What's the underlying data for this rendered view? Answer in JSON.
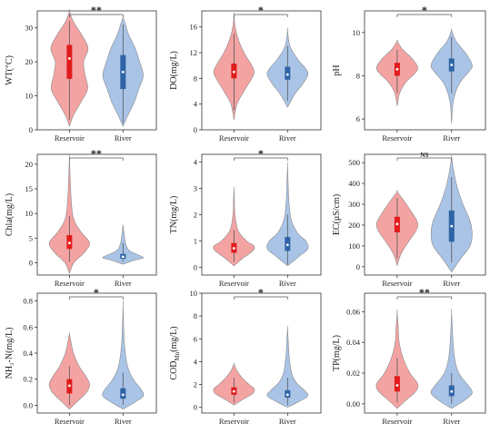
{
  "chart_data": [
    {
      "type": "violin",
      "ylabel": "WT(°C)",
      "categories": [
        "Reservoir",
        "River"
      ],
      "ylim": [
        0,
        35
      ],
      "yticks": [
        0,
        10,
        20,
        30
      ],
      "significance": "**",
      "series": [
        {
          "name": "Reservoir",
          "color": "#f4a3a3",
          "box_color": "#e21b1b",
          "min": 3,
          "q1": 15,
          "median": 21,
          "q3": 25,
          "max": 32,
          "profile_y": [
            1,
            4,
            8,
            12,
            16,
            20,
            24,
            28,
            32,
            35
          ],
          "profile_w": [
            0,
            0.18,
            0.55,
            0.9,
            0.78,
            0.7,
            0.92,
            0.6,
            0.18,
            0
          ]
        },
        {
          "name": "River",
          "color": "#a9c4e6",
          "box_color": "#2e63a6",
          "min": 2,
          "q1": 12,
          "median": 17,
          "q3": 22,
          "max": 31,
          "profile_y": [
            1,
            4,
            8,
            12,
            16,
            20,
            24,
            28,
            31,
            33
          ],
          "profile_w": [
            0,
            0.22,
            0.55,
            0.78,
            1.0,
            0.82,
            0.6,
            0.28,
            0.12,
            0
          ]
        }
      ]
    },
    {
      "type": "violin",
      "ylabel": "DO(mg/L)",
      "categories": [
        "Reservoir",
        "River"
      ],
      "ylim": [
        0,
        18.5
      ],
      "yticks": [
        0,
        4,
        8,
        12,
        16
      ],
      "significance": "*",
      "series": [
        {
          "name": "Reservoir",
          "color": "#f4a3a3",
          "box_color": "#e21b1b",
          "min": 3,
          "q1": 8,
          "median": 9,
          "q3": 10.3,
          "max": 15,
          "profile_y": [
            1.5,
            4,
            6,
            8,
            9,
            10,
            12,
            14,
            16,
            18
          ],
          "profile_w": [
            0,
            0.15,
            0.5,
            0.88,
            1.0,
            0.88,
            0.5,
            0.22,
            0.06,
            0
          ]
        },
        {
          "name": "River",
          "color": "#a9c4e6",
          "box_color": "#2e63a6",
          "min": 4.5,
          "q1": 7.8,
          "median": 8.6,
          "q3": 9.8,
          "max": 13,
          "profile_y": [
            3.5,
            5.5,
            7,
            8.5,
            9.5,
            11,
            13,
            15.5
          ],
          "profile_w": [
            0,
            0.35,
            0.72,
            1.0,
            0.9,
            0.5,
            0.12,
            0
          ]
        }
      ]
    },
    {
      "type": "violin",
      "ylabel": "pH",
      "categories": [
        "Reservoir",
        "River"
      ],
      "ylim": [
        5.5,
        11
      ],
      "yticks": [
        6,
        8,
        10
      ],
      "significance": "*",
      "series": [
        {
          "name": "Reservoir",
          "color": "#f4a3a3",
          "box_color": "#e21b1b",
          "min": 7.2,
          "q1": 8.0,
          "median": 8.3,
          "q3": 8.6,
          "max": 9.2,
          "profile_y": [
            6.6,
            7.2,
            7.7,
            8.1,
            8.4,
            8.8,
            9.2,
            9.6
          ],
          "profile_w": [
            0,
            0.12,
            0.42,
            0.85,
            1.0,
            0.72,
            0.28,
            0
          ]
        },
        {
          "name": "River",
          "color": "#a9c4e6",
          "box_color": "#2e63a6",
          "min": 7.2,
          "q1": 8.2,
          "median": 8.5,
          "q3": 8.8,
          "max": 9.8,
          "profile_y": [
            5.8,
            6.8,
            7.6,
            8.2,
            8.5,
            9.0,
            9.6,
            10.1
          ],
          "profile_w": [
            0,
            0.08,
            0.35,
            0.85,
            1.0,
            0.72,
            0.22,
            0
          ]
        }
      ]
    },
    {
      "type": "violin",
      "ylabel": "Chla(mg/L)",
      "categories": [
        "Reservoir",
        "River"
      ],
      "ylim": [
        -2.5,
        22
      ],
      "yticks": [
        0,
        5,
        10,
        15,
        20
      ],
      "significance": "**",
      "series": [
        {
          "name": "Reservoir",
          "color": "#f4a3a3",
          "box_color": "#e21b1b",
          "min": 0.2,
          "q1": 2.8,
          "median": 4.0,
          "q3": 5.6,
          "max": 9.5,
          "profile_y": [
            -2.2,
            0,
            2,
            4,
            6,
            8,
            10,
            14,
            18,
            21.5
          ],
          "profile_w": [
            0,
            0.22,
            0.72,
            1.0,
            0.62,
            0.3,
            0.15,
            0.07,
            0.03,
            0
          ]
        },
        {
          "name": "River",
          "color": "#a9c4e6",
          "box_color": "#2e63a6",
          "min": 0.3,
          "q1": 0.8,
          "median": 1.2,
          "q3": 1.8,
          "max": 4.0,
          "profile_y": [
            -0.3,
            0.5,
            1.0,
            1.5,
            2.5,
            4,
            6,
            7.5
          ],
          "profile_w": [
            0,
            0.55,
            1.0,
            0.8,
            0.3,
            0.12,
            0.05,
            0
          ]
        }
      ]
    },
    {
      "type": "violin",
      "ylabel": "TN(mg/L)",
      "categories": [
        "Reservoir",
        "River"
      ],
      "ylim": [
        -0.3,
        4.3
      ],
      "yticks": [
        0,
        1,
        2,
        3,
        4
      ],
      "significance": "*",
      "series": [
        {
          "name": "Reservoir",
          "color": "#f4a3a3",
          "box_color": "#e21b1b",
          "min": 0.2,
          "q1": 0.55,
          "median": 0.72,
          "q3": 0.92,
          "max": 1.4,
          "profile_y": [
            0.05,
            0.35,
            0.6,
            0.8,
            1.0,
            1.4,
            2.0,
            2.6,
            3.0
          ],
          "profile_w": [
            0,
            0.45,
            0.9,
            1.0,
            0.62,
            0.2,
            0.05,
            0.02,
            0
          ]
        },
        {
          "name": "River",
          "color": "#a9c4e6",
          "box_color": "#2e63a6",
          "min": 0.1,
          "q1": 0.62,
          "median": 0.85,
          "q3": 1.15,
          "max": 2.0,
          "profile_y": [
            0.05,
            0.4,
            0.7,
            1.0,
            1.3,
            1.8,
            2.5,
            3.2,
            3.9
          ],
          "profile_w": [
            0,
            0.55,
            1.0,
            0.9,
            0.5,
            0.18,
            0.07,
            0.03,
            0
          ]
        }
      ]
    },
    {
      "type": "violin",
      "ylabel": "EC(μS/cm)",
      "categories": [
        "Reservoir",
        "River"
      ],
      "ylim": [
        -40,
        540
      ],
      "yticks": [
        0,
        100,
        200,
        300,
        400,
        500
      ],
      "significance": "NS",
      "series": [
        {
          "name": "Reservoir",
          "color": "#f4a3a3",
          "box_color": "#e21b1b",
          "min": 40,
          "q1": 165,
          "median": 205,
          "q3": 240,
          "max": 330,
          "profile_y": [
            5,
            60,
            120,
            170,
            210,
            260,
            310,
            360
          ],
          "profile_w": [
            0,
            0.18,
            0.55,
            0.9,
            1.0,
            0.72,
            0.38,
            0
          ]
        },
        {
          "name": "River",
          "color": "#a9c4e6",
          "box_color": "#2e63a6",
          "min": 20,
          "q1": 120,
          "median": 195,
          "q3": 270,
          "max": 430,
          "profile_y": [
            -25,
            40,
            100,
            160,
            220,
            300,
            380,
            450,
            525
          ],
          "profile_w": [
            0,
            0.45,
            0.9,
            1.0,
            0.9,
            0.55,
            0.28,
            0.12,
            0
          ]
        }
      ]
    },
    {
      "type": "violin",
      "ylabel": "NH₃-N(mg/L)",
      "categories": [
        "Reservoir",
        "River"
      ],
      "ylim": [
        -0.06,
        0.86
      ],
      "yticks": [
        0.0,
        0.2,
        0.4,
        0.6,
        0.8
      ],
      "significance": "*",
      "series": [
        {
          "name": "Reservoir",
          "color": "#f4a3a3",
          "box_color": "#e21b1b",
          "min": 0.0,
          "q1": 0.09,
          "median": 0.15,
          "q3": 0.2,
          "max": 0.3,
          "profile_y": [
            -0.03,
            0.03,
            0.1,
            0.16,
            0.22,
            0.3,
            0.4,
            0.5,
            0.55
          ],
          "profile_w": [
            0,
            0.4,
            0.85,
            1.0,
            0.82,
            0.48,
            0.2,
            0.06,
            0
          ]
        },
        {
          "name": "River",
          "color": "#a9c4e6",
          "box_color": "#2e63a6",
          "min": 0.0,
          "q1": 0.05,
          "median": 0.08,
          "q3": 0.13,
          "max": 0.25,
          "profile_y": [
            -0.03,
            0.02,
            0.07,
            0.12,
            0.2,
            0.3,
            0.45,
            0.6,
            0.78
          ],
          "profile_w": [
            0,
            0.55,
            1.0,
            0.9,
            0.5,
            0.22,
            0.08,
            0.03,
            0
          ]
        }
      ]
    },
    {
      "type": "violin",
      "ylabel": "COD_Mn(mg/L)",
      "categories": [
        "Reservoir",
        "River"
      ],
      "ylim": [
        -0.5,
        10
      ],
      "yticks": [
        0,
        2,
        4,
        6,
        8,
        10
      ],
      "significance": "*",
      "series": [
        {
          "name": "Reservoir",
          "color": "#f4a3a3",
          "box_color": "#e21b1b",
          "min": 0.4,
          "q1": 1.1,
          "median": 1.4,
          "q3": 1.75,
          "max": 2.6,
          "profile_y": [
            0.2,
            0.7,
            1.2,
            1.6,
            2.0,
            2.6,
            3.2,
            3.8
          ],
          "profile_w": [
            0,
            0.45,
            0.92,
            1.0,
            0.75,
            0.4,
            0.15,
            0
          ]
        },
        {
          "name": "River",
          "color": "#a9c4e6",
          "box_color": "#2e63a6",
          "min": 0.2,
          "q1": 0.85,
          "median": 1.1,
          "q3": 1.5,
          "max": 2.6,
          "profile_y": [
            0.0,
            0.5,
            1.0,
            1.5,
            2.2,
            3.0,
            4.5,
            6.0,
            7.0
          ],
          "profile_w": [
            0,
            0.55,
            1.0,
            0.82,
            0.42,
            0.2,
            0.08,
            0.03,
            0
          ]
        }
      ]
    },
    {
      "type": "violin",
      "ylabel": "TP(mg/L)",
      "categories": [
        "Reservoir",
        "River"
      ],
      "ylim": [
        -0.006,
        0.072
      ],
      "yticks": [
        0.0,
        0.02,
        0.04,
        0.06
      ],
      "significance": "**",
      "series": [
        {
          "name": "Reservoir",
          "color": "#f4a3a3",
          "box_color": "#e21b1b",
          "min": 0.001,
          "q1": 0.008,
          "median": 0.012,
          "q3": 0.018,
          "max": 0.03,
          "profile_y": [
            -0.003,
            0.002,
            0.008,
            0.013,
            0.02,
            0.03,
            0.04,
            0.05,
            0.06
          ],
          "profile_w": [
            0,
            0.4,
            0.9,
            1.0,
            0.62,
            0.28,
            0.1,
            0.05,
            0
          ]
        },
        {
          "name": "River",
          "color": "#a9c4e6",
          "box_color": "#2e63a6",
          "min": 0.0,
          "q1": 0.005,
          "median": 0.008,
          "q3": 0.012,
          "max": 0.02,
          "profile_y": [
            -0.003,
            0.002,
            0.007,
            0.012,
            0.02,
            0.03,
            0.045,
            0.06
          ],
          "profile_w": [
            0,
            0.6,
            1.0,
            0.8,
            0.35,
            0.14,
            0.05,
            0
          ]
        }
      ]
    }
  ]
}
